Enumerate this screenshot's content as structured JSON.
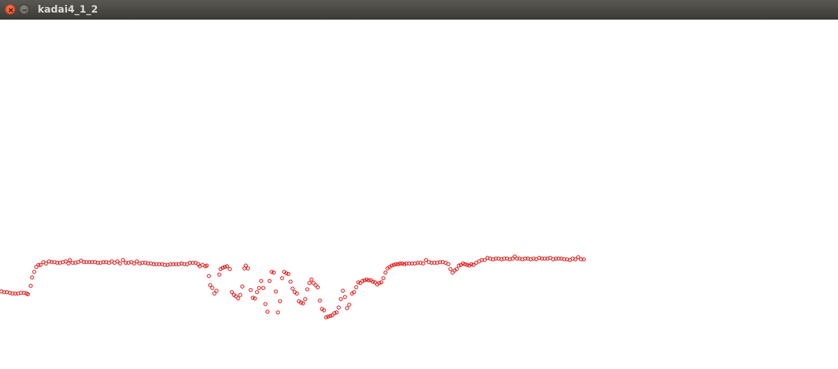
{
  "window": {
    "title": "kadai4_1_2",
    "buttons": [
      {
        "name": "close-button",
        "icon": "close-icon"
      },
      {
        "name": "minimize-button",
        "icon": "minimize-icon"
      }
    ]
  },
  "colors": {
    "titlebar": "#3c3b37",
    "title_text": "#dfdbd2",
    "close": "#e95420",
    "point_stroke": "#e00000",
    "background": "#ffffff"
  },
  "chart_data": {
    "type": "scatter",
    "marker": "hollow-circle",
    "grid": false,
    "series": [
      {
        "points": [
          [
            0,
            417
          ],
          [
            4,
            418
          ],
          [
            8,
            418
          ],
          [
            12,
            419
          ],
          [
            16,
            420
          ],
          [
            20,
            420
          ],
          [
            24,
            420
          ],
          [
            28,
            419
          ],
          [
            32,
            419
          ],
          [
            36,
            420
          ],
          [
            38,
            421
          ],
          [
            42,
            409
          ],
          [
            44,
            397
          ],
          [
            47,
            389
          ],
          [
            50,
            382
          ],
          [
            53,
            379
          ],
          [
            56,
            379
          ],
          [
            60,
            375
          ],
          [
            64,
            377
          ],
          [
            68,
            374
          ],
          [
            72,
            375
          ],
          [
            76,
            375
          ],
          [
            80,
            376
          ],
          [
            84,
            376
          ],
          [
            88,
            375
          ],
          [
            92,
            374
          ],
          [
            96,
            377
          ],
          [
            98,
            372
          ],
          [
            102,
            376
          ],
          [
            106,
            376
          ],
          [
            110,
            375
          ],
          [
            114,
            373
          ],
          [
            118,
            375
          ],
          [
            122,
            375
          ],
          [
            126,
            375
          ],
          [
            130,
            375
          ],
          [
            134,
            375
          ],
          [
            138,
            376
          ],
          [
            142,
            376
          ],
          [
            146,
            375
          ],
          [
            150,
            375
          ],
          [
            154,
            376
          ],
          [
            158,
            374
          ],
          [
            162,
            376
          ],
          [
            166,
            374
          ],
          [
            170,
            377
          ],
          [
            174,
            372
          ],
          [
            178,
            376
          ],
          [
            182,
            376
          ],
          [
            186,
            375
          ],
          [
            190,
            377
          ],
          [
            194,
            374
          ],
          [
            198,
            377
          ],
          [
            202,
            376
          ],
          [
            206,
            376
          ],
          [
            210,
            377
          ],
          [
            214,
            377
          ],
          [
            218,
            378
          ],
          [
            222,
            378
          ],
          [
            226,
            378
          ],
          [
            230,
            378
          ],
          [
            234,
            379
          ],
          [
            238,
            379
          ],
          [
            242,
            378
          ],
          [
            246,
            378
          ],
          [
            250,
            378
          ],
          [
            254,
            378
          ],
          [
            258,
            377
          ],
          [
            262,
            378
          ],
          [
            266,
            378
          ],
          [
            270,
            376
          ],
          [
            274,
            376
          ],
          [
            278,
            376
          ],
          [
            282,
            378
          ],
          [
            284,
            381
          ],
          [
            288,
            379
          ],
          [
            292,
            381
          ],
          [
            294,
            380
          ],
          [
            297,
            395
          ],
          [
            299,
            408
          ],
          [
            302,
            412
          ],
          [
            305,
            420
          ],
          [
            308,
            416
          ],
          [
            312,
            393
          ],
          [
            314,
            385
          ],
          [
            317,
            383
          ],
          [
            320,
            382
          ],
          [
            323,
            381
          ],
          [
            327,
            385
          ],
          [
            330,
            418
          ],
          [
            333,
            422
          ],
          [
            336,
            424
          ],
          [
            339,
            427
          ],
          [
            342,
            422
          ],
          [
            345,
            410
          ],
          [
            348,
            384
          ],
          [
            350,
            380
          ],
          [
            353,
            384
          ],
          [
            357,
            415
          ],
          [
            360,
            426
          ],
          [
            363,
            427
          ],
          [
            366,
            418
          ],
          [
            369,
            412
          ],
          [
            372,
            402
          ],
          [
            375,
            412
          ],
          [
            378,
            435
          ],
          [
            381,
            446
          ],
          [
            384,
            402
          ],
          [
            387,
            389
          ],
          [
            390,
            390
          ],
          [
            393,
            417
          ],
          [
            396,
            447
          ],
          [
            399,
            431
          ],
          [
            402,
            398
          ],
          [
            405,
            389
          ],
          [
            408,
            391
          ],
          [
            411,
            392
          ],
          [
            414,
            403
          ],
          [
            417,
            413
          ],
          [
            420,
            418
          ],
          [
            423,
            420
          ],
          [
            426,
            431
          ],
          [
            429,
            433
          ],
          [
            432,
            434
          ],
          [
            435,
            428
          ],
          [
            438,
            414
          ],
          [
            441,
            405
          ],
          [
            444,
            400
          ],
          [
            447,
            405
          ],
          [
            450,
            408
          ],
          [
            453,
            411
          ],
          [
            456,
            430
          ],
          [
            459,
            442
          ],
          [
            462,
            444
          ],
          [
            465,
            454
          ],
          [
            468,
            453
          ],
          [
            471,
            452
          ],
          [
            474,
            451
          ],
          [
            477,
            448
          ],
          [
            480,
            447
          ],
          [
            483,
            440
          ],
          [
            486,
            428
          ],
          [
            489,
            416
          ],
          [
            492,
            425
          ],
          [
            495,
            441
          ],
          [
            498,
            436
          ],
          [
            502,
            420
          ],
          [
            505,
            418
          ],
          [
            508,
            411
          ],
          [
            511,
            404
          ],
          [
            514,
            405
          ],
          [
            517,
            402
          ],
          [
            520,
            401
          ],
          [
            523,
            400
          ],
          [
            526,
            401
          ],
          [
            529,
            401
          ],
          [
            532,
            403
          ],
          [
            535,
            404
          ],
          [
            538,
            407
          ],
          [
            541,
            405
          ],
          [
            544,
            404
          ],
          [
            547,
            398
          ],
          [
            550,
            390
          ],
          [
            553,
            384
          ],
          [
            556,
            382
          ],
          [
            559,
            380
          ],
          [
            562,
            379
          ],
          [
            565,
            378
          ],
          [
            568,
            378
          ],
          [
            571,
            377
          ],
          [
            574,
            377
          ],
          [
            577,
            378
          ],
          [
            580,
            377
          ],
          [
            584,
            377
          ],
          [
            588,
            377
          ],
          [
            592,
            377
          ],
          [
            596,
            376
          ],
          [
            600,
            376
          ],
          [
            604,
            377
          ],
          [
            608,
            372
          ],
          [
            612,
            375
          ],
          [
            616,
            376
          ],
          [
            620,
            376
          ],
          [
            624,
            376
          ],
          [
            628,
            375
          ],
          [
            632,
            375
          ],
          [
            636,
            376
          ],
          [
            640,
            378
          ],
          [
            643,
            385
          ],
          [
            646,
            390
          ],
          [
            649,
            387
          ],
          [
            652,
            385
          ],
          [
            655,
            380
          ],
          [
            658,
            379
          ],
          [
            661,
            377
          ],
          [
            664,
            378
          ],
          [
            667,
            379
          ],
          [
            670,
            380
          ],
          [
            673,
            378
          ],
          [
            676,
            379
          ],
          [
            680,
            376
          ],
          [
            684,
            374
          ],
          [
            688,
            372
          ],
          [
            692,
            372
          ],
          [
            696,
            369
          ],
          [
            700,
            370
          ],
          [
            704,
            371
          ],
          [
            708,
            370
          ],
          [
            712,
            370
          ],
          [
            716,
            371
          ],
          [
            720,
            370
          ],
          [
            724,
            370
          ],
          [
            728,
            371
          ],
          [
            732,
            370
          ],
          [
            735,
            367
          ],
          [
            738,
            370
          ],
          [
            742,
            370
          ],
          [
            746,
            371
          ],
          [
            750,
            370
          ],
          [
            754,
            370
          ],
          [
            758,
            371
          ],
          [
            762,
            370
          ],
          [
            766,
            371
          ],
          [
            770,
            369
          ],
          [
            774,
            370
          ],
          [
            778,
            370
          ],
          [
            782,
            370
          ],
          [
            786,
            369
          ],
          [
            790,
            371
          ],
          [
            794,
            370
          ],
          [
            798,
            370
          ],
          [
            802,
            370
          ],
          [
            806,
            371
          ],
          [
            810,
            371
          ],
          [
            814,
            372
          ],
          [
            818,
            370
          ],
          [
            822,
            371
          ],
          [
            826,
            368
          ],
          [
            830,
            371
          ],
          [
            834,
            371
          ]
        ]
      }
    ]
  }
}
